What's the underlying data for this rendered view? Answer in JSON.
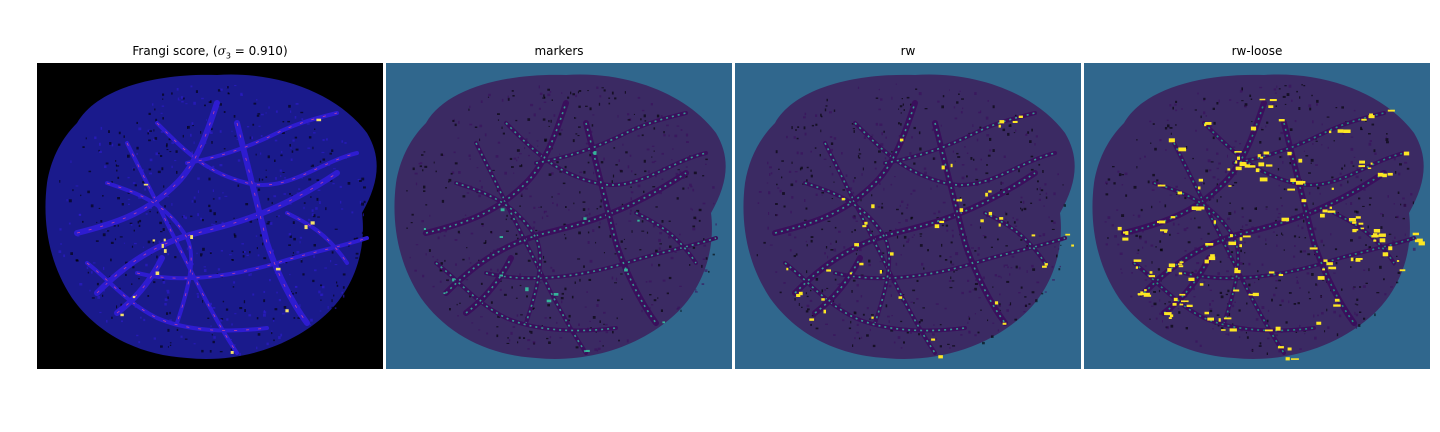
{
  "figure": {
    "panels": [
      {
        "id": "frangi",
        "title_prefix": "Frangi score, (",
        "title_symbol": "σ",
        "title_sub": "3",
        "title_suffix": " = 0.910)",
        "background": "#000000",
        "blob_color": "#1a1a8c",
        "vessel_color": "#2e1cd0",
        "highlight_color": "#d84a9a",
        "hot_color": "#f4e06a"
      },
      {
        "id": "markers",
        "title": "markers",
        "background": "#30678d",
        "blob_color": "#3b2a63",
        "vessel_color": "#3a0f5c",
        "highlight_color": "#35b59a",
        "hot_color": "#35b59a"
      },
      {
        "id": "rw",
        "title": "rw",
        "background": "#30678d",
        "blob_color": "#3b2a63",
        "vessel_color": "#3a0f5c",
        "highlight_color": "#35b59a",
        "hot_color": "#fde724"
      },
      {
        "id": "rw-loose",
        "title": "rw-loose",
        "background": "#30678d",
        "blob_color": "#3b2a63",
        "vessel_color": "#3a0f5c",
        "highlight_color": "#1fa187",
        "hot_color": "#fde724"
      }
    ]
  }
}
